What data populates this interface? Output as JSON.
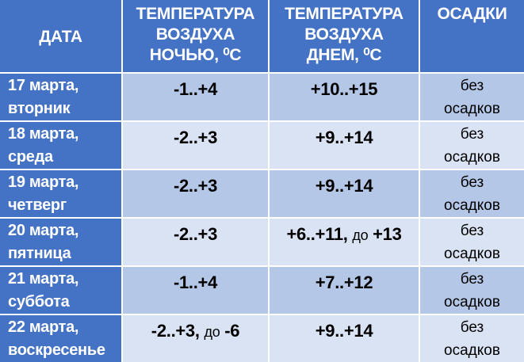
{
  "table": {
    "header": [
      [
        "ДАТА"
      ],
      [
        "ТЕМПЕРАТУРА",
        "ВОЗДУХА",
        "НОЧЬЮ, ⁰С"
      ],
      [
        "ТЕМПЕРАТУРА",
        "ВОЗДУХА",
        "ДНЕМ, ⁰С"
      ],
      [
        "ОСАДКИ"
      ]
    ],
    "rows": [
      [
        [
          "17 марта,",
          "вторник"
        ],
        [
          "-1..+4"
        ],
        [
          "+10..+15"
        ],
        [
          "без",
          "осадков"
        ]
      ],
      [
        [
          "18 марта,",
          "среда"
        ],
        [
          "-2..+3"
        ],
        [
          "+9..+14"
        ],
        [
          "без",
          "осадков"
        ]
      ],
      [
        [
          "19 марта,",
          "четверг"
        ],
        [
          "-2..+3"
        ],
        [
          "+9..+14"
        ],
        [
          "без",
          "осадков"
        ]
      ],
      [
        [
          "20 марта,",
          "пятница"
        ],
        [
          "-2..+3"
        ],
        [
          "+6..+11,",
          "до",
          "+13"
        ],
        [
          "без",
          "осадков"
        ]
      ],
      [
        [
          "21 марта,",
          "суббота"
        ],
        [
          "-1..+4"
        ],
        [
          "+7..+12"
        ],
        [
          "без",
          "осадков"
        ]
      ],
      [
        [
          "22 марта,",
          "воскресенье"
        ],
        [
          "-2..+3,",
          "до",
          "-6"
        ],
        [
          "+9..+14"
        ],
        [
          "без",
          "осадков"
        ]
      ]
    ]
  }
}
